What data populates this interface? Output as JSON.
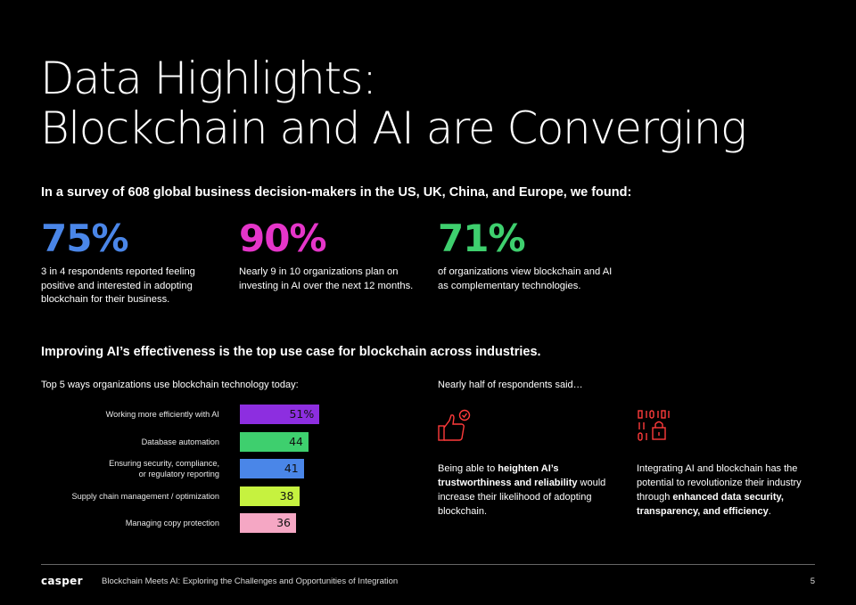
{
  "title": {
    "line1": "Data Highlights:",
    "line2": "Blockchain and AI are Converging"
  },
  "intro": "In a survey of 608 global business decision-makers in the US, UK, China, and Europe, we found:",
  "stats": [
    {
      "value": "75%",
      "color": "#4a86e8",
      "desc": "3 in 4 respondents reported feeling positive and interested in adopting blockchain for their business."
    },
    {
      "value": "90%",
      "color": "#e535c9",
      "desc": "Nearly 9 in 10 organizations plan on investing in AI over the next 12 months."
    },
    {
      "value": "71%",
      "color": "#3ecf6e",
      "desc": "of organizations view blockchain and AI as complementary technologies."
    }
  ],
  "section_heading": "Improving AI’s effectiveness is the top use case for blockchain across industries.",
  "chart_subtitle": "Top 5 ways organizations use blockchain technology today:",
  "respondents_subtitle": "Nearly half of respondents said…",
  "chart_data": {
    "type": "bar",
    "orientation": "horizontal",
    "categories": [
      "Working more efficiently with AI",
      "Database automation",
      "Ensuring security, compliance, or regulatory reporting",
      "Supply chain management / optimization",
      "Managing copy protection"
    ],
    "category_lines": [
      [
        "Working more efficiently with AI"
      ],
      [
        "Database automation"
      ],
      [
        "Ensuring security, compliance,",
        "or regulatory reporting"
      ],
      [
        "Supply chain management / optimization"
      ],
      [
        "Managing copy protection"
      ]
    ],
    "values": [
      51,
      44,
      41,
      38,
      36
    ],
    "value_labels": [
      "51%",
      "44",
      "41",
      "38",
      "36"
    ],
    "colors": [
      "#8d2ee0",
      "#3ecf6e",
      "#4a86e8",
      "#c6f23f",
      "#f5a7c4"
    ],
    "title": "",
    "xlabel": "",
    "ylabel": "",
    "grid": false
  },
  "quotes": [
    {
      "icon": "thumbs-up-check-icon",
      "pre": "Being able to ",
      "bold": "heighten AI’s trustworthiness and reliability",
      "post": " would increase their likelihood of adopting blockchain."
    },
    {
      "icon": "binary-lock-icon",
      "pre": "Integrating AI and blockchain has the potential to revolutionize their industry through ",
      "bold": "enhanced data security, transparency, and efficiency",
      "post": "."
    }
  ],
  "icon_color": "#ff3b3b",
  "footer": {
    "logo": "casper",
    "text": "Blockchain Meets AI: Exploring the Challenges and Opportunities of Integration",
    "page": "5"
  }
}
